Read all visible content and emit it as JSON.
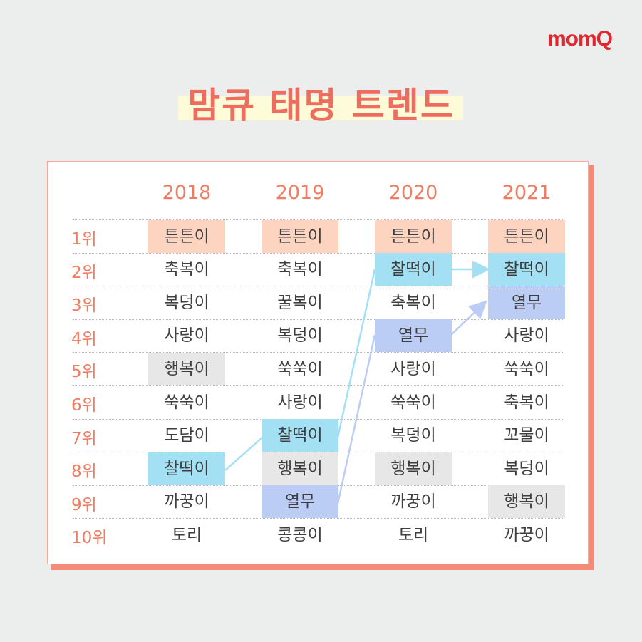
{
  "logo": "momQ",
  "title": "맘큐 태명 트렌드",
  "years": [
    "2018",
    "2019",
    "2020",
    "2021"
  ],
  "ranks": [
    "1위",
    "2위",
    "3위",
    "4위",
    "5위",
    "6위",
    "7위",
    "8위",
    "9위",
    "10위"
  ],
  "colors": {
    "peach": "#fdd4bf",
    "sky": "#a4e0f4",
    "lavender": "#bccdf5",
    "gray": "#e7e7e7",
    "accent": "#ef7d62"
  },
  "columns": {
    "2018": [
      "튼튼이",
      "축복이",
      "복덩이",
      "사랑이",
      "행복이",
      "쑥쑥이",
      "도담이",
      "찰떡이",
      "까꿍이",
      "토리"
    ],
    "2019": [
      "튼튼이",
      "축복이",
      "꿀복이",
      "복덩이",
      "쑥쑥이",
      "사랑이",
      "찰떡이",
      "행복이",
      "열무",
      "콩콩이"
    ],
    "2020": [
      "튼튼이",
      "찰떡이",
      "축복이",
      "열무",
      "사랑이",
      "쑥쑥이",
      "복덩이",
      "행복이",
      "까꿍이",
      "토리"
    ],
    "2021": [
      "튼튼이",
      "찰떡이",
      "열무",
      "사랑이",
      "쑥쑥이",
      "축복이",
      "꼬물이",
      "복덩이",
      "행복이",
      "까꿍이"
    ]
  },
  "highlights": {
    "튼튼이": "peach",
    "찰떡이": "sky",
    "열무": "lavender",
    "행복이": "gray"
  },
  "chart_data": {
    "type": "table",
    "title": "맘큐 태명 트렌드",
    "columns": [
      "순위",
      "2018",
      "2019",
      "2020",
      "2021"
    ],
    "rows": [
      [
        "1위",
        "튼튼이",
        "튼튼이",
        "튼튼이",
        "튼튼이"
      ],
      [
        "2위",
        "축복이",
        "축복이",
        "찰떡이",
        "찰떡이"
      ],
      [
        "3위",
        "복덩이",
        "꿀복이",
        "축복이",
        "열무"
      ],
      [
        "4위",
        "사랑이",
        "복덩이",
        "열무",
        "사랑이"
      ],
      [
        "5위",
        "행복이",
        "쑥쑥이",
        "사랑이",
        "쑥쑥이"
      ],
      [
        "6위",
        "쑥쑥이",
        "사랑이",
        "쑥쑥이",
        "축복이"
      ],
      [
        "7위",
        "도담이",
        "찰떡이",
        "복덩이",
        "꼬물이"
      ],
      [
        "8위",
        "찰떡이",
        "행복이",
        "행복이",
        "복덩이"
      ],
      [
        "9위",
        "까꿍이",
        "열무",
        "까꿍이",
        "행복이"
      ],
      [
        "10위",
        "토리",
        "콩콩이",
        "토리",
        "까꿍이"
      ]
    ],
    "trend_lines": [
      {
        "name": "찰떡이",
        "path": [
          "2018:8위",
          "2019:7위",
          "2020:2위",
          "2021:2위"
        ]
      },
      {
        "name": "열무",
        "path": [
          "2019:9위",
          "2020:4위",
          "2021:3위"
        ]
      }
    ]
  }
}
